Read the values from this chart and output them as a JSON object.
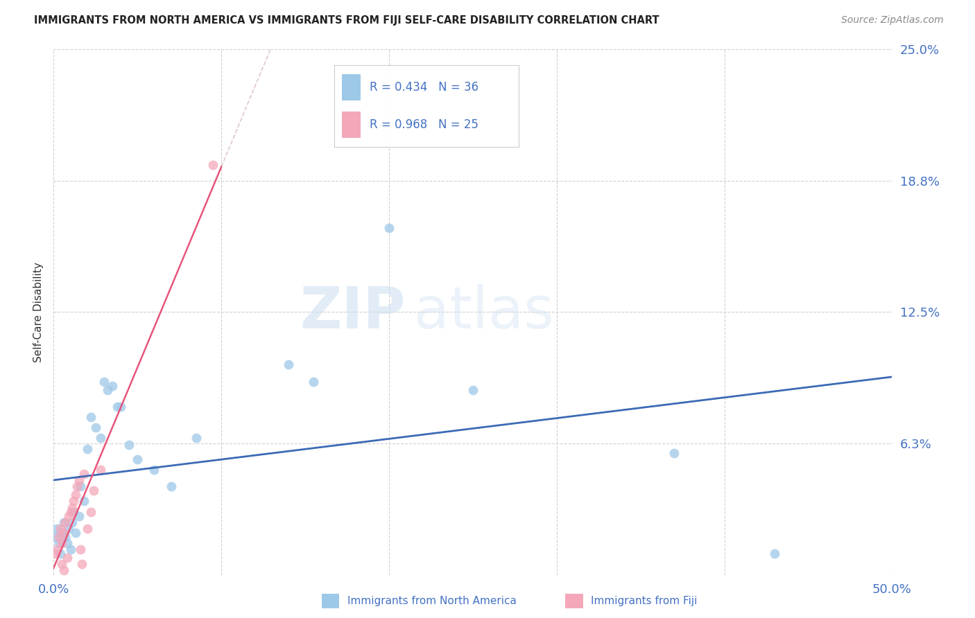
{
  "title": "IMMIGRANTS FROM NORTH AMERICA VS IMMIGRANTS FROM FIJI SELF-CARE DISABILITY CORRELATION CHART",
  "source": "Source: ZipAtlas.com",
  "ylabel": "Self-Care Disability",
  "xlim": [
    0.0,
    0.5
  ],
  "ylim": [
    0.0,
    0.25
  ],
  "ytick_vals": [
    0.0,
    0.0625,
    0.125,
    0.1875,
    0.25
  ],
  "ytick_labels": [
    "",
    "6.3%",
    "12.5%",
    "18.8%",
    "25.0%"
  ],
  "xtick_vals": [
    0.0,
    0.1,
    0.2,
    0.3,
    0.4,
    0.5
  ],
  "xtick_labels": [
    "0.0%",
    "",
    "",
    "",
    "",
    "50.0%"
  ],
  "legend_blue_label": "Immigrants from North America",
  "legend_pink_label": "Immigrants from Fiji",
  "R_blue": 0.434,
  "N_blue": 36,
  "R_pink": 0.968,
  "N_pink": 25,
  "blue_color": "#9ec8e8",
  "pink_color": "#f4a7b9",
  "blue_line_color": "#3b6ab5",
  "pink_line_color": "#e8547a",
  "pink_line_dashed_color": "#e8a0b0",
  "watermark_zip": "ZIP",
  "watermark_atlas": "atlas",
  "blue_scatter_x": [
    0.001,
    0.002,
    0.003,
    0.004,
    0.005,
    0.006,
    0.007,
    0.008,
    0.009,
    0.01,
    0.011,
    0.012,
    0.013,
    0.015,
    0.016,
    0.018,
    0.02,
    0.022,
    0.025,
    0.028,
    0.03,
    0.032,
    0.035,
    0.038,
    0.04,
    0.045,
    0.05,
    0.06,
    0.07,
    0.085,
    0.14,
    0.155,
    0.2,
    0.25,
    0.37,
    0.43
  ],
  "blue_scatter_y": [
    0.018,
    0.022,
    0.015,
    0.01,
    0.02,
    0.025,
    0.018,
    0.015,
    0.022,
    0.012,
    0.025,
    0.03,
    0.02,
    0.028,
    0.042,
    0.035,
    0.06,
    0.075,
    0.07,
    0.065,
    0.092,
    0.088,
    0.09,
    0.08,
    0.08,
    0.062,
    0.055,
    0.05,
    0.042,
    0.065,
    0.1,
    0.092,
    0.165,
    0.088,
    0.058,
    0.01
  ],
  "pink_scatter_x": [
    0.001,
    0.002,
    0.003,
    0.004,
    0.005,
    0.006,
    0.007,
    0.008,
    0.009,
    0.01,
    0.011,
    0.012,
    0.013,
    0.014,
    0.015,
    0.016,
    0.017,
    0.018,
    0.02,
    0.022,
    0.024,
    0.028,
    0.005,
    0.006,
    0.095
  ],
  "pink_scatter_y": [
    0.01,
    0.012,
    0.018,
    0.022,
    0.015,
    0.02,
    0.025,
    0.008,
    0.028,
    0.03,
    0.032,
    0.035,
    0.038,
    0.042,
    0.045,
    0.012,
    0.005,
    0.048,
    0.022,
    0.03,
    0.04,
    0.05,
    0.005,
    0.002,
    0.195
  ]
}
